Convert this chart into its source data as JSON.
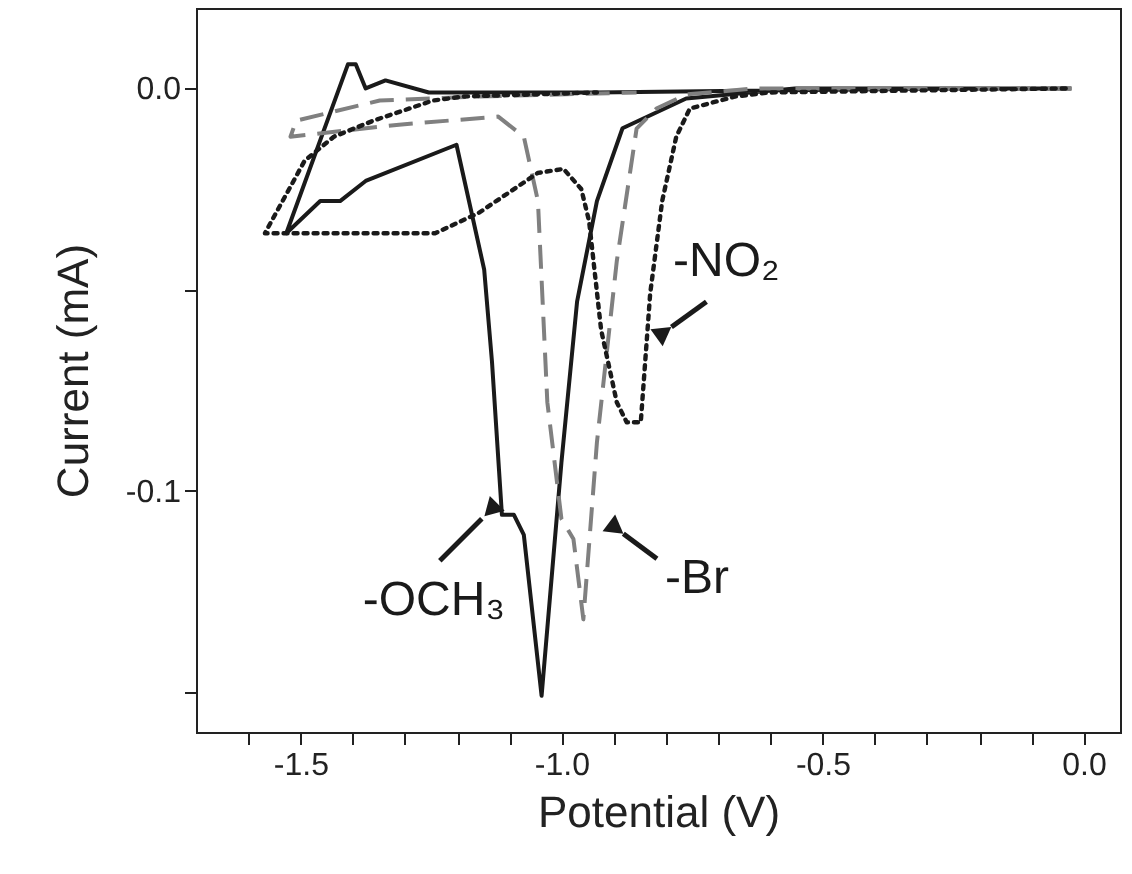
{
  "chart_data": {
    "type": "line",
    "xlabel": "Potential (V)",
    "ylabel": "Current (mA)",
    "xlim": [
      -1.7,
      0.07
    ],
    "ylim": [
      -0.16,
      0.02
    ],
    "xticks": [
      {
        "value": -1.6,
        "label": null
      },
      -1.5,
      {
        "value": -1.4,
        "label": null
      },
      {
        "value": -1.3,
        "label": null
      },
      {
        "value": -1.2,
        "label": null
      },
      {
        "value": -1.1,
        "label": null
      },
      {
        "value": -1,
        "label": "-1.0"
      },
      {
        "value": -0.9,
        "label": null
      },
      {
        "value": -0.8,
        "label": null
      },
      {
        "value": -0.7,
        "label": null
      },
      {
        "value": -0.6,
        "label": null
      },
      -0.5,
      {
        "value": -0.4,
        "label": null
      },
      {
        "value": -0.3,
        "label": null
      },
      {
        "value": -0.2,
        "label": null
      },
      {
        "value": -0.1,
        "label": null
      },
      {
        "value": 0,
        "label": "0.0"
      }
    ],
    "yticks": [
      {
        "value": -0.15,
        "label": null
      },
      -0.1,
      {
        "value": -0.05,
        "label": null
      },
      {
        "value": 0,
        "label": "0.0"
      }
    ],
    "grid": false,
    "series": [
      {
        "color": "#1a1a1a",
        "line_style": "solid",
        "x": [
          -0.023,
          -0.553,
          -0.761,
          -0.883,
          -0.932,
          -0.97,
          -1.0,
          -1.038,
          -1.072,
          -1.091,
          -1.114,
          -1.133,
          -1.148,
          -1.201,
          -1.375,
          -1.424,
          -1.462,
          -1.527,
          -1.409,
          -1.394,
          -1.375,
          -1.337,
          -1.254,
          -0.932,
          -0.25
        ],
        "values": [
          0.0,
          0.0,
          -0.0025,
          -0.0099,
          -0.028,
          -0.053,
          -0.093,
          -0.151,
          -0.111,
          -0.106,
          -0.106,
          -0.068,
          -0.045,
          -0.014,
          -0.023,
          -0.028,
          -0.028,
          -0.036,
          0.006,
          0.006,
          0.0,
          0.002,
          -0.001,
          -0.001,
          0.0
        ]
      },
      {
        "color": "#808080",
        "line_style": "dashed",
        "x": [
          -0.023,
          -0.629,
          -0.761,
          -0.818,
          -0.856,
          -0.894,
          -0.932,
          -0.958,
          -0.977,
          -1.0,
          -1.027,
          -1.045,
          -1.072,
          -1.121,
          -1.311,
          -1.519,
          -1.508,
          -1.348,
          -1.159,
          -0.856
        ],
        "values": [
          0.0,
          0.0,
          -0.0015,
          -0.005,
          -0.01,
          -0.043,
          -0.088,
          -0.132,
          -0.112,
          -0.107,
          -0.078,
          -0.028,
          -0.012,
          -0.007,
          -0.009,
          -0.012,
          -0.008,
          -0.003,
          -0.002,
          -0.001
        ]
      },
      {
        "color": "#1a1a1a",
        "line_style": "dotted",
        "x": [
          -0.034,
          -0.602,
          -0.667,
          -0.754,
          -0.78,
          -0.807,
          -0.83,
          -0.848,
          -0.875,
          -0.894,
          -0.924,
          -0.947,
          -0.962,
          -0.996,
          -1.045,
          -1.159,
          -1.242,
          -1.568,
          -1.492,
          -1.436,
          -1.36,
          -1.246,
          -1.186,
          -0.932
        ],
        "values": [
          0.0,
          -0.001,
          -0.002,
          -0.005,
          -0.012,
          -0.028,
          -0.051,
          -0.083,
          -0.083,
          -0.078,
          -0.06,
          -0.033,
          -0.025,
          -0.02,
          -0.021,
          -0.031,
          -0.036,
          -0.036,
          -0.018,
          -0.012,
          -0.008,
          -0.003,
          -0.002,
          -0.001
        ]
      }
    ],
    "annotations": [
      {
        "text": "-OCH₃",
        "x": -1.118,
        "y": -0.1025
      },
      {
        "text": "-Br",
        "x": -0.909,
        "y": -0.108
      },
      {
        "text": "-NO₂",
        "x": -0.818,
        "y": -0.062
      }
    ]
  }
}
